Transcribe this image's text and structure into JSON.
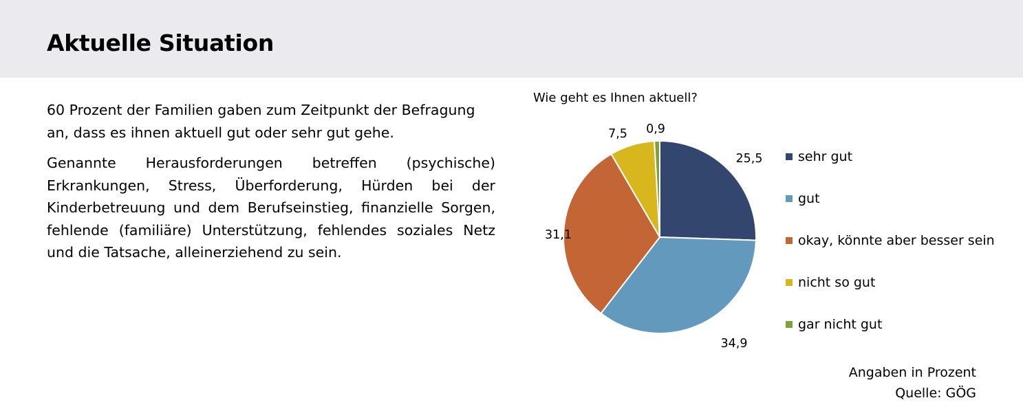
{
  "header": {
    "title": "Aktuelle Situation"
  },
  "body": {
    "paragraph_1": "60 Prozent der Familien gaben zum Zeitpunkt der Befragung an, dass es ihnen aktuell gut oder sehr gut gehe.",
    "paragraph_2": "Genannte Herausforderungen betreffen (psychische) Erkrankungen, Stress, Überforderung, Hürden bei der Kinderbetreuung und dem Berufseinstieg, finanzielle Sorgen, fehlende (familiäre) Unterstützung, fehlendes soziales Netz und die Tatsache, alleinerziehend zu sein."
  },
  "chart_data": {
    "type": "pie",
    "title": "Wie geht es Ihnen aktuell?",
    "categories": [
      "sehr gut",
      "gut",
      "okay, könnte aber besser sein",
      "nicht so gut",
      "gar nicht gut"
    ],
    "values": [
      25.5,
      34.9,
      31.1,
      7.5,
      0.9
    ],
    "value_labels": [
      "25,5",
      "34,9",
      "31,1",
      "7,5",
      "0,9"
    ],
    "colors": [
      "#33466e",
      "#6399bd",
      "#c46535",
      "#d7b71d",
      "#7ea13b"
    ],
    "legend_position": "right",
    "start_angle": "12 o'clock",
    "direction": "clockwise"
  },
  "notes": {
    "unit": "Angaben in Prozent",
    "source": "Quelle: GÖG"
  }
}
